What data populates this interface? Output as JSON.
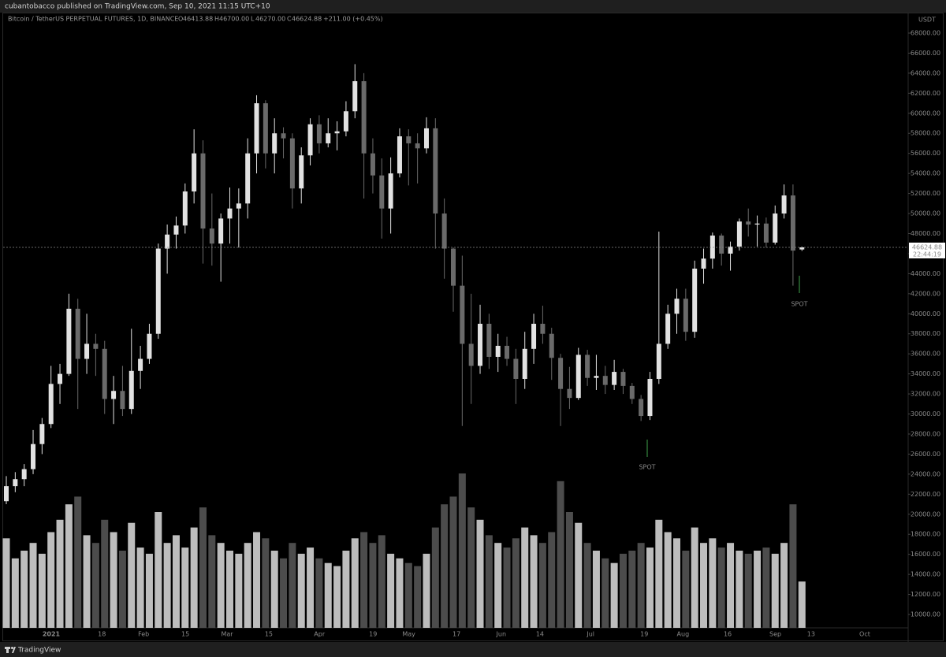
{
  "header": {
    "publisher": "cubantobacco published on TradingView.com, Sep 10, 2021 11:15 UTC+10"
  },
  "footer": {
    "brand": "TradingView"
  },
  "chart_data": {
    "type": "candlestick",
    "title": "Bitcoin / TetherUS PERPETUAL FUTURES, 1D, BINANCE",
    "ohlc_header": [
      {
        "label": "O",
        "value": "46413.88"
      },
      {
        "label": "H",
        "value": "46700.00"
      },
      {
        "label": "L",
        "value": "46270.00"
      },
      {
        "label": "C",
        "value": "46624.88"
      }
    ],
    "change": "+211.00 (+0.45%)",
    "currency": "USDT",
    "last_price": 46624.88,
    "countdown": "22:44:19",
    "up_color": "#e2e2e2",
    "down_color": "#6a6a6a",
    "volume_up_color": "#bdbdbd",
    "volume_down_color": "#4c4c4c",
    "annotations": [
      {
        "text": "SPOT",
        "color": "#3fa34d"
      },
      {
        "text": "SPOT",
        "color": "#3fa34d"
      }
    ],
    "x_labels": [
      "2021",
      "18",
      "Feb",
      "15",
      "Mar",
      "15",
      "Apr",
      "19",
      "May",
      "17",
      "Jun",
      "14",
      "Jul",
      "19",
      "Aug",
      "16",
      "Sep",
      "13",
      "Oct"
    ],
    "open": [
      21300,
      22800,
      23500,
      24500,
      27000,
      29000,
      33000,
      34000,
      40500,
      35500,
      37000,
      36500,
      31500,
      32300,
      30500,
      34300,
      35500,
      38000,
      46500,
      47900,
      48800,
      52200,
      56000,
      48500,
      47000,
      49500,
      50500,
      51000,
      56000,
      61000,
      56000,
      58000,
      57500,
      52500,
      55800,
      58900,
      57000,
      58000,
      58200,
      60200,
      63200,
      56000,
      53800,
      50500,
      54000,
      57700,
      57000,
      56500,
      58500,
      50000,
      46500,
      42800,
      37000,
      34800,
      39000,
      35700,
      36800,
      35500,
      33500,
      36500,
      39000,
      38000,
      35600,
      32500,
      31600,
      35900,
      33600,
      33800,
      32900,
      34200,
      32800,
      31500,
      29800,
      33500,
      37000,
      40000,
      41500,
      38200,
      44500,
      45500,
      47800,
      46000,
      46700,
      49200,
      48900,
      49000,
      47100,
      50000,
      51800,
      46413.88
    ],
    "high": [
      23800,
      24200,
      25000,
      28400,
      29600,
      34800,
      35000,
      42000,
      41500,
      40000,
      38000,
      37300,
      33800,
      34800,
      38500,
      36800,
      39000,
      47000,
      48900,
      49700,
      53000,
      58400,
      57300,
      52000,
      50000,
      52600,
      52500,
      57500,
      61800,
      61300,
      59500,
      58600,
      58000,
      56600,
      59500,
      59800,
      59500,
      59200,
      61200,
      64900,
      64000,
      57500,
      55500,
      55600,
      58500,
      58400,
      58000,
      59600,
      59500,
      51500,
      46600,
      45800,
      42000,
      40900,
      40000,
      38000,
      37700,
      36500,
      38200,
      40000,
      40800,
      38600,
      36000,
      34700,
      36600,
      36400,
      35900,
      34800,
      35400,
      34500,
      33100,
      31900,
      34200,
      48200,
      40900,
      42500,
      42500,
      45300,
      46500,
      48100,
      48000,
      47200,
      49500,
      50500,
      49800,
      49600,
      50800,
      52900,
      52900,
      46700
    ],
    "low": [
      21000,
      22200,
      22800,
      24000,
      26000,
      28600,
      31000,
      33800,
      30500,
      34000,
      33800,
      30000,
      29000,
      29800,
      30000,
      32500,
      35000,
      37500,
      44000,
      46500,
      48000,
      51000,
      45000,
      44800,
      43200,
      47000,
      46600,
      49500,
      54000,
      54500,
      54000,
      55500,
      50500,
      51000,
      54800,
      56000,
      56600,
      56300,
      57700,
      59500,
      51500,
      52000,
      47500,
      48000,
      53600,
      52800,
      53000,
      56000,
      46500,
      43500,
      40200,
      28800,
      31000,
      34000,
      34500,
      34200,
      34800,
      31000,
      32500,
      35000,
      37000,
      33400,
      28800,
      30500,
      31400,
      32800,
      32400,
      32000,
      32400,
      32000,
      31000,
      29300,
      29400,
      33000,
      36500,
      38000,
      37300,
      37600,
      43000,
      44500,
      44800,
      44300,
      46300,
      47700,
      46700,
      46600,
      46900,
      49500,
      42800,
      46270
    ],
    "close": [
      22800,
      23500,
      24500,
      27000,
      29000,
      33000,
      34000,
      40500,
      35500,
      37000,
      36500,
      31500,
      32300,
      30500,
      34300,
      35500,
      38000,
      46500,
      47900,
      48800,
      52200,
      56000,
      48500,
      47000,
      49500,
      50500,
      51000,
      56000,
      61000,
      56000,
      58000,
      57500,
      52500,
      55800,
      58900,
      57000,
      58000,
      58200,
      60200,
      63200,
      56000,
      53800,
      50500,
      54000,
      57700,
      57000,
      56500,
      58500,
      50000,
      46500,
      42800,
      37000,
      34800,
      39000,
      35700,
      36800,
      35500,
      33500,
      36500,
      39000,
      38000,
      35600,
      32500,
      31600,
      35900,
      33600,
      33800,
      32900,
      34200,
      32800,
      31500,
      29800,
      33500,
      37000,
      40000,
      41500,
      38200,
      44500,
      45500,
      47800,
      46000,
      46700,
      49200,
      48900,
      49000,
      47100,
      50000,
      51800,
      46300,
      46624.88
    ],
    "volume": [
      58,
      45,
      50,
      55,
      48,
      62,
      70,
      80,
      85,
      60,
      55,
      70,
      62,
      50,
      68,
      52,
      48,
      75,
      55,
      60,
      52,
      65,
      78,
      60,
      55,
      50,
      48,
      55,
      62,
      58,
      50,
      45,
      55,
      48,
      52,
      45,
      42,
      40,
      50,
      58,
      62,
      55,
      60,
      48,
      45,
      42,
      40,
      48,
      65,
      80,
      85,
      100,
      78,
      70,
      60,
      55,
      52,
      58,
      65,
      60,
      55,
      62,
      95,
      75,
      68,
      55,
      50,
      45,
      42,
      48,
      50,
      55,
      52,
      70,
      62,
      58,
      50,
      65,
      55,
      58,
      52,
      55,
      50,
      48,
      50,
      52,
      48,
      55,
      80,
      30
    ],
    "ylim": [
      10000,
      68000
    ],
    "yticks": [
      {
        "value": 10000,
        "label": "10000.00"
      },
      {
        "value": 12000,
        "label": "12000.00"
      },
      {
        "value": 14000,
        "label": "14000.00"
      },
      {
        "value": 16000,
        "label": "16000.00"
      },
      {
        "value": 18000,
        "label": "18000.00"
      },
      {
        "value": 20000,
        "label": "20000.00"
      },
      {
        "value": 22000,
        "label": "22000.00"
      },
      {
        "value": 24000,
        "label": "24000.00"
      },
      {
        "value": 26000,
        "label": "26000.00"
      },
      {
        "value": 28000,
        "label": "28000.00"
      },
      {
        "value": 30000,
        "label": "30000.00"
      },
      {
        "value": 32000,
        "label": "32000.00"
      },
      {
        "value": 34000,
        "label": "34000.00"
      },
      {
        "value": 36000,
        "label": "36000.00"
      },
      {
        "value": 38000,
        "label": "38000.00"
      },
      {
        "value": 40000,
        "label": "40000.00"
      },
      {
        "value": 42000,
        "label": "42000.00"
      },
      {
        "value": 44000,
        "label": "44000.00"
      },
      {
        "value": 46000,
        "label": "46000.00"
      },
      {
        "value": 48000,
        "label": "48000.00"
      },
      {
        "value": 50000,
        "label": "50000.00"
      },
      {
        "value": 52000,
        "label": "52000.00"
      },
      {
        "value": 54000,
        "label": "54000.00"
      },
      {
        "value": 56000,
        "label": "56000.00"
      },
      {
        "value": 58000,
        "label": "58000.00"
      },
      {
        "value": 60000,
        "label": "60000.00"
      },
      {
        "value": 62000,
        "label": "62000.00"
      },
      {
        "value": 64000,
        "label": "64000.00"
      },
      {
        "value": 66000,
        "label": "66000.00"
      },
      {
        "value": 68000,
        "label": "68000.00"
      }
    ]
  }
}
